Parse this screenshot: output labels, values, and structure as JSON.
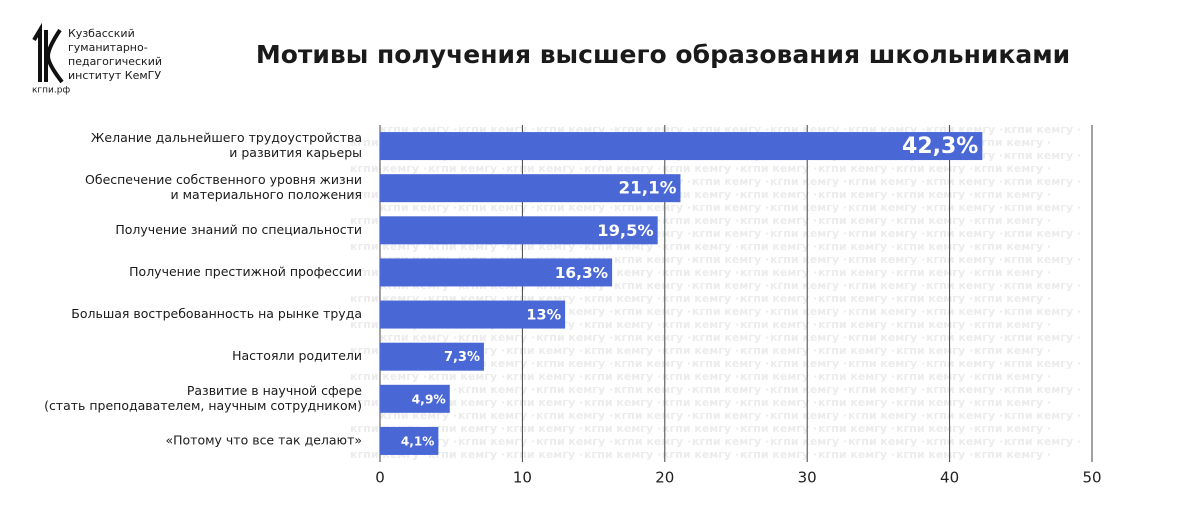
{
  "logo": {
    "lines": [
      "Кузбасский",
      "гуманитарно-",
      "педагогический",
      "институт КемГУ"
    ],
    "site": "кгпи.рф"
  },
  "watermark": "кгпи кемгу ·",
  "chart_data": {
    "type": "hbar",
    "title": "Мотивы получения высшего образования школьниками",
    "categories": [
      [
        "Желание дальнейшего трудоустройства",
        "и развития карьеры"
      ],
      [
        "Обеспечение собственного уровня жизни",
        "и материального положения"
      ],
      [
        "Получение знаний по специальности"
      ],
      [
        "Получение престижной профессии"
      ],
      [
        "Большая востребованность на рынке труда"
      ],
      [
        "Настояли родители"
      ],
      [
        "Развитие в научной сфере",
        "(стать преподавателем, научным сотрудником)"
      ],
      [
        "«Потому что все так делают»"
      ]
    ],
    "values": [
      42.3,
      21.1,
      19.5,
      16.3,
      13,
      7.3,
      4.9,
      4.1
    ],
    "value_labels": [
      "42,3%",
      "21,1%",
      "19,5%",
      "16,3%",
      "13%",
      "7,3%",
      "4,9%",
      "4,1%"
    ],
    "color": "#4a67d6",
    "xlim": [
      0,
      50
    ],
    "xticks": [
      0,
      10,
      20,
      30,
      40,
      50
    ],
    "grid": true
  }
}
